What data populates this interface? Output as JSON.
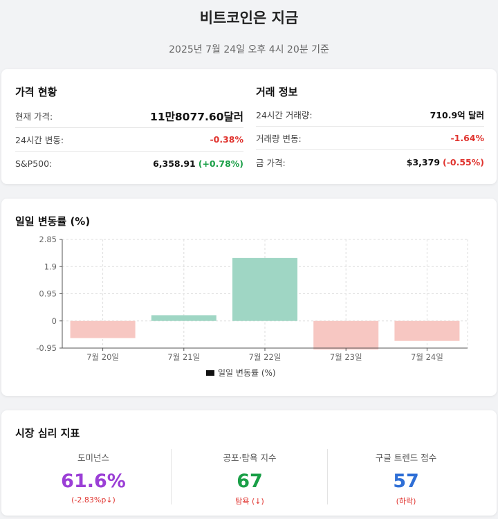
{
  "header": {
    "title": "비트코인은 지금",
    "subtitle": "2025년 7월 24일 오후 4시 20분 기준"
  },
  "price_status": {
    "heading": "가격 현황",
    "rows": [
      {
        "label": "현재 가격:",
        "value": "11만8077.60달러"
      },
      {
        "label": "24시간 변동:",
        "value": "-0.38%"
      },
      {
        "label": "S&P500:",
        "value": "6,358.91",
        "change": "(+0.78%)"
      }
    ]
  },
  "trade_info": {
    "heading": "거래 정보",
    "rows": [
      {
        "label": "24시간 거래량:",
        "value": "710.9억 달러"
      },
      {
        "label": "거래량 변동:",
        "value": "-1.64%"
      },
      {
        "label": "금 가격:",
        "value": "$3,379",
        "change": "(-0.55%)"
      }
    ]
  },
  "chart_section": {
    "heading": "일일 변동률 (%)"
  },
  "chart_data": {
    "type": "bar",
    "categories": [
      "7월 20일",
      "7월 21일",
      "7월 22일",
      "7월 23일",
      "7월 24일"
    ],
    "series": [
      {
        "name": "일일 변동률 (%)",
        "values": [
          -0.6,
          0.2,
          2.2,
          -1.0,
          -0.7
        ]
      }
    ],
    "y_ticks": [
      "2.85",
      "1.9",
      "0.95",
      "0",
      "-0.95"
    ],
    "ylim": [
      -0.95,
      2.85
    ],
    "grid": true,
    "legend": "bottom",
    "colors": {
      "positive": "#9fd6c4",
      "negative": "#f7c7c2",
      "legend_swatch": "#111111"
    }
  },
  "sentiment": {
    "heading": "시장 심리 지표",
    "items": [
      {
        "label": "도미넌스",
        "value": "61.6%",
        "sub": "(-2.83%p↓)",
        "color": "#9b3fd6",
        "sub_color": "#e0342f"
      },
      {
        "label": "공포·탐욕 지수",
        "value": "67",
        "sub": "탐욕 (↓)",
        "color": "#1a9f47",
        "sub_color": "#e0342f"
      },
      {
        "label": "구글 트렌드 점수",
        "value": "57",
        "sub": "(하락)",
        "color": "#2f6fd6",
        "sub_color": "#e0342f"
      }
    ]
  }
}
